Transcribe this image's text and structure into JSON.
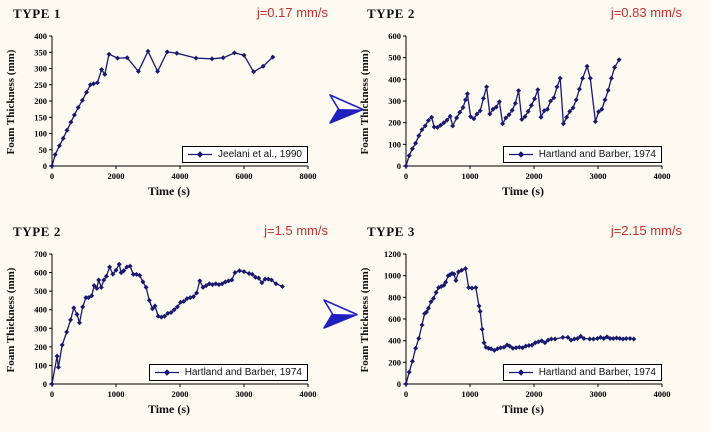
{
  "figure": {
    "background": "#fcfaf1",
    "series_color": "#191970",
    "annotation_color": "#c53030",
    "arrow_color": "#2020c0",
    "axis_color": "#000000",
    "legend_bg": "#ffffff"
  },
  "icons": {
    "flow_arrow": "3d-right-arrowhead-icon",
    "legend_marker": "line-with-diamond-marker"
  },
  "chart_data": [
    {
      "type": "line",
      "title": "TYPE 1",
      "annotation": "j=0.17 mm/s",
      "legend": "Jeelani et al., 1990",
      "xlabel": "Time (s)",
      "ylabel": "Foam Thickness (mm)",
      "xlim": [
        0,
        8000
      ],
      "ylim": [
        0,
        400
      ],
      "xticks": [
        0,
        2000,
        4000,
        6000,
        8000
      ],
      "yticks": [
        0,
        50,
        100,
        150,
        200,
        250,
        300,
        350,
        400
      ],
      "grid": false,
      "legend_position": "lower right inside",
      "points": [
        [
          0,
          0
        ],
        [
          100,
          35
        ],
        [
          230,
          62
        ],
        [
          350,
          85
        ],
        [
          470,
          110
        ],
        [
          590,
          135
        ],
        [
          700,
          157
        ],
        [
          820,
          180
        ],
        [
          950,
          202
        ],
        [
          1080,
          227
        ],
        [
          1200,
          250
        ],
        [
          1300,
          253
        ],
        [
          1420,
          256
        ],
        [
          1550,
          297
        ],
        [
          1650,
          282
        ],
        [
          1780,
          344
        ],
        [
          2050,
          332
        ],
        [
          2350,
          333
        ],
        [
          2700,
          291
        ],
        [
          3000,
          353
        ],
        [
          3300,
          291
        ],
        [
          3600,
          351
        ],
        [
          3900,
          347
        ],
        [
          4500,
          332
        ],
        [
          5000,
          330
        ],
        [
          5350,
          333
        ],
        [
          5700,
          348
        ],
        [
          6000,
          341
        ],
        [
          6300,
          290
        ],
        [
          6600,
          307
        ],
        [
          6900,
          335
        ]
      ]
    },
    {
      "type": "line",
      "title": "TYPE 2",
      "annotation": "j=0.83 mm/s",
      "legend": "Hartland and Barber, 1974",
      "xlabel": "Time (s)",
      "ylabel": "Foam Thickness (mm)",
      "xlim": [
        0,
        4000
      ],
      "ylim": [
        0,
        600
      ],
      "xticks": [
        0,
        1000,
        2000,
        3000,
        4000
      ],
      "yticks": [
        0,
        100,
        200,
        300,
        400,
        500,
        600
      ],
      "grid": false,
      "legend_position": "lower right inside",
      "points": [
        [
          0,
          0
        ],
        [
          50,
          48
        ],
        [
          100,
          80
        ],
        [
          150,
          105
        ],
        [
          200,
          140
        ],
        [
          250,
          168
        ],
        [
          300,
          185
        ],
        [
          350,
          210
        ],
        [
          400,
          225
        ],
        [
          440,
          180
        ],
        [
          490,
          178
        ],
        [
          540,
          188
        ],
        [
          590,
          200
        ],
        [
          640,
          212
        ],
        [
          690,
          230
        ],
        [
          730,
          185
        ],
        [
          790,
          222
        ],
        [
          840,
          248
        ],
        [
          890,
          270
        ],
        [
          930,
          305
        ],
        [
          960,
          333
        ],
        [
          1010,
          228
        ],
        [
          1060,
          218
        ],
        [
          1110,
          240
        ],
        [
          1160,
          255
        ],
        [
          1210,
          312
        ],
        [
          1260,
          365
        ],
        [
          1310,
          240
        ],
        [
          1360,
          262
        ],
        [
          1410,
          272
        ],
        [
          1460,
          297
        ],
        [
          1510,
          195
        ],
        [
          1560,
          222
        ],
        [
          1610,
          237
        ],
        [
          1660,
          257
        ],
        [
          1710,
          290
        ],
        [
          1760,
          348
        ],
        [
          1810,
          215
        ],
        [
          1860,
          228
        ],
        [
          1910,
          252
        ],
        [
          1960,
          280
        ],
        [
          2010,
          310
        ],
        [
          2060,
          352
        ],
        [
          2110,
          225
        ],
        [
          2160,
          255
        ],
        [
          2210,
          262
        ],
        [
          2260,
          300
        ],
        [
          2310,
          315
        ],
        [
          2360,
          365
        ],
        [
          2410,
          405
        ],
        [
          2460,
          195
        ],
        [
          2510,
          225
        ],
        [
          2560,
          252
        ],
        [
          2610,
          268
        ],
        [
          2660,
          305
        ],
        [
          2710,
          355
        ],
        [
          2760,
          405
        ],
        [
          2830,
          460
        ],
        [
          2880,
          405
        ],
        [
          2960,
          205
        ],
        [
          3010,
          250
        ],
        [
          3060,
          262
        ],
        [
          3110,
          305
        ],
        [
          3160,
          350
        ],
        [
          3210,
          405
        ],
        [
          3260,
          455
        ],
        [
          3330,
          490
        ]
      ]
    },
    {
      "type": "line",
      "title": "TYPE 2",
      "annotation": "j=1.5 mm/s",
      "legend": "Hartland and Barber, 1974",
      "xlabel": "Time (s)",
      "ylabel": "Foam Thickness (mm)",
      "xlim": [
        0,
        4000
      ],
      "ylim": [
        0,
        700
      ],
      "xticks": [
        0,
        1000,
        2000,
        3000,
        4000
      ],
      "yticks": [
        0,
        100,
        200,
        300,
        400,
        500,
        600,
        700
      ],
      "grid": false,
      "legend_position": "lower right inside",
      "points": [
        [
          0,
          0
        ],
        [
          80,
          150
        ],
        [
          100,
          90
        ],
        [
          160,
          210
        ],
        [
          230,
          280
        ],
        [
          290,
          345
        ],
        [
          340,
          410
        ],
        [
          390,
          375
        ],
        [
          430,
          330
        ],
        [
          480,
          415
        ],
        [
          530,
          465
        ],
        [
          570,
          465
        ],
        [
          620,
          475
        ],
        [
          660,
          530
        ],
        [
          700,
          515
        ],
        [
          730,
          560
        ],
        [
          770,
          520
        ],
        [
          810,
          560
        ],
        [
          850,
          580
        ],
        [
          900,
          630
        ],
        [
          950,
          592
        ],
        [
          1000,
          612
        ],
        [
          1050,
          645
        ],
        [
          1080,
          600
        ],
        [
          1120,
          610
        ],
        [
          1170,
          630
        ],
        [
          1220,
          635
        ],
        [
          1270,
          590
        ],
        [
          1320,
          590
        ],
        [
          1370,
          585
        ],
        [
          1420,
          550
        ],
        [
          1470,
          520
        ],
        [
          1520,
          450
        ],
        [
          1570,
          405
        ],
        [
          1610,
          420
        ],
        [
          1660,
          365
        ],
        [
          1710,
          360
        ],
        [
          1760,
          365
        ],
        [
          1810,
          380
        ],
        [
          1860,
          385
        ],
        [
          1910,
          400
        ],
        [
          1960,
          415
        ],
        [
          2010,
          440
        ],
        [
          2060,
          445
        ],
        [
          2110,
          460
        ],
        [
          2160,
          465
        ],
        [
          2210,
          470
        ],
        [
          2260,
          490
        ],
        [
          2310,
          555
        ],
        [
          2360,
          520
        ],
        [
          2410,
          530
        ],
        [
          2460,
          540
        ],
        [
          2510,
          535
        ],
        [
          2560,
          540
        ],
        [
          2610,
          535
        ],
        [
          2660,
          540
        ],
        [
          2710,
          550
        ],
        [
          2760,
          555
        ],
        [
          2810,
          560
        ],
        [
          2860,
          600
        ],
        [
          2930,
          610
        ],
        [
          3000,
          605
        ],
        [
          3080,
          595
        ],
        [
          3130,
          590
        ],
        [
          3180,
          575
        ],
        [
          3230,
          570
        ],
        [
          3280,
          545
        ],
        [
          3330,
          565
        ],
        [
          3380,
          565
        ],
        [
          3430,
          560
        ],
        [
          3500,
          540
        ],
        [
          3600,
          525
        ]
      ]
    },
    {
      "type": "line",
      "title": "TYPE 3",
      "annotation": "j=2.15 mm/s",
      "legend": "Hartland and Barber, 1974",
      "xlabel": "Time (s)",
      "ylabel": "Foam Thickness (mm)",
      "xlim": [
        0,
        4000
      ],
      "ylim": [
        0,
        1200
      ],
      "xticks": [
        0,
        1000,
        2000,
        3000,
        4000
      ],
      "yticks": [
        0,
        200,
        400,
        600,
        800,
        1000,
        1200
      ],
      "grid": false,
      "legend_position": "lower right inside",
      "points": [
        [
          0,
          0
        ],
        [
          50,
          110
        ],
        [
          100,
          210
        ],
        [
          150,
          330
        ],
        [
          200,
          420
        ],
        [
          250,
          545
        ],
        [
          290,
          650
        ],
        [
          320,
          665
        ],
        [
          350,
          700
        ],
        [
          390,
          760
        ],
        [
          430,
          790
        ],
        [
          470,
          845
        ],
        [
          510,
          890
        ],
        [
          550,
          900
        ],
        [
          590,
          910
        ],
        [
          620,
          940
        ],
        [
          660,
          1000
        ],
        [
          690,
          1010
        ],
        [
          720,
          1020
        ],
        [
          750,
          1015
        ],
        [
          780,
          955
        ],
        [
          820,
          1035
        ],
        [
          870,
          1050
        ],
        [
          930,
          1065
        ],
        [
          980,
          890
        ],
        [
          1030,
          885
        ],
        [
          1090,
          890
        ],
        [
          1140,
          720
        ],
        [
          1160,
          670
        ],
        [
          1190,
          505
        ],
        [
          1220,
          380
        ],
        [
          1250,
          340
        ],
        [
          1290,
          330
        ],
        [
          1330,
          325
        ],
        [
          1380,
          310
        ],
        [
          1430,
          325
        ],
        [
          1480,
          335
        ],
        [
          1530,
          340
        ],
        [
          1580,
          360
        ],
        [
          1620,
          350
        ],
        [
          1670,
          330
        ],
        [
          1720,
          335
        ],
        [
          1770,
          340
        ],
        [
          1820,
          335
        ],
        [
          1870,
          350
        ],
        [
          1920,
          355
        ],
        [
          1970,
          360
        ],
        [
          2020,
          380
        ],
        [
          2070,
          390
        ],
        [
          2120,
          400
        ],
        [
          2170,
          380
        ],
        [
          2220,
          405
        ],
        [
          2270,
          415
        ],
        [
          2330,
          415
        ],
        [
          2450,
          430
        ],
        [
          2530,
          430
        ],
        [
          2580,
          405
        ],
        [
          2630,
          415
        ],
        [
          2680,
          420
        ],
        [
          2730,
          440
        ],
        [
          2780,
          420
        ],
        [
          2870,
          415
        ],
        [
          2930,
          415
        ],
        [
          2990,
          420
        ],
        [
          3040,
          430
        ],
        [
          3090,
          420
        ],
        [
          3140,
          435
        ],
        [
          3190,
          420
        ],
        [
          3240,
          420
        ],
        [
          3290,
          425
        ],
        [
          3340,
          420
        ],
        [
          3390,
          415
        ],
        [
          3440,
          420
        ],
        [
          3500,
          420
        ],
        [
          3560,
          415
        ]
      ]
    }
  ]
}
